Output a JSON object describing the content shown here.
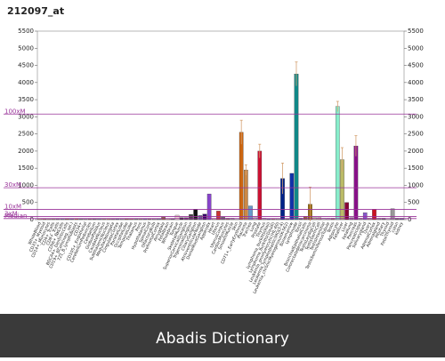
{
  "chart_data": {
    "type": "bar",
    "title": "212097_at",
    "categories": [
      "WholeBlood",
      "CD33+_Myeloid",
      "CD14+_Monocytes",
      "CD4+_Tcells",
      "CD8+_Tcells",
      "CD56+_NKCells",
      "BDCA4+_DentriticCells",
      "CD19+_BCells(neg._sel.)",
      "721_B_lymphoblasts",
      "CD34+",
      "CD105+_Endothelial",
      "CerebellumPeduncles",
      "Cerebellum",
      "GlobusPallidus",
      "CaudateNucleus",
      "SubthalamicNucleus",
      "MedullaOblongata",
      "CingulateCortex",
      "ParietalLobe",
      "OccipitalLobe",
      "TemporalLobe",
      "Thalamus",
      "Pons",
      "Hypothalamus",
      "SpinalCord",
      "OlfactoryBulb",
      "PrefrontalCortex",
      "Amygdala",
      "Fetalbrain",
      "Wholebrain",
      "Tongue",
      "SkeletalMuscle",
      "SuperiorCervicalGanglion",
      "TrigeminalGanglion",
      "CiliaryGanglion",
      "AtrioventricularNode",
      "DorsalRootGanglion",
      "Appendix",
      "Heart",
      "Uterus",
      "UterusCorpus",
      "CardiacMyocytes",
      "SmoothMuscle",
      "Skin",
      "CD71+_EarlyErythroid",
      "Placenta",
      "Trachea",
      "Lung",
      "Prostate",
      "Thymus",
      "Lymphoma_burkitts(Raji)",
      "Lymphoma_burkitts(Daudi)",
      "Leukemia_promyelocytic(HL-60)",
      "Leukemia_lymphoblastic(MOLT-4)",
      "Leukemia_chronicMyelogenous(K-562)",
      "Bonemarrow",
      "Lymphnode",
      "Tonsil",
      "BronchialEpithelialCells",
      "Colorectaladenocarcinoma",
      "TestisLeydigCell",
      "TestisGermCell",
      "TestisIntersitial",
      "TestisSeminiferousTubule",
      "Testis",
      "Adipocyte",
      "Fetalliver",
      "Liver",
      "Fetallung",
      "Pancreas",
      "PancreaticIslet",
      "Salivarygland",
      "Ovary",
      "AdrenalCortex",
      "Adrenalgland",
      "Pituitary",
      "Thyroid",
      "FetalThyroid",
      "colon",
      "kidney"
    ],
    "values": [
      30,
      20,
      20,
      20,
      20,
      20,
      20,
      20,
      20,
      20,
      20,
      20,
      20,
      20,
      20,
      20,
      20,
      20,
      20,
      20,
      20,
      20,
      20,
      20,
      20,
      20,
      20,
      70,
      30,
      20,
      130,
      60,
      60,
      150,
      300,
      120,
      160,
      750,
      30,
      250,
      70,
      40,
      40,
      30,
      2550,
      1450,
      400,
      60,
      2000,
      40,
      30,
      30,
      30,
      1200,
      30,
      1350,
      4250,
      40,
      100,
      450,
      60,
      60,
      40,
      40,
      40,
      3300,
      1750,
      500,
      60,
      2150,
      40,
      200,
      40,
      300,
      40,
      40,
      30,
      320,
      40,
      40
    ],
    "errors": [
      0,
      0,
      0,
      0,
      0,
      0,
      0,
      0,
      0,
      0,
      0,
      0,
      0,
      0,
      0,
      0,
      0,
      0,
      0,
      0,
      0,
      0,
      0,
      0,
      0,
      0,
      0,
      0,
      0,
      0,
      0,
      0,
      0,
      0,
      0,
      0,
      0,
      0,
      0,
      0,
      0,
      0,
      0,
      0,
      350,
      150,
      0,
      0,
      200,
      0,
      0,
      0,
      0,
      450,
      0,
      0,
      350,
      0,
      0,
      500,
      0,
      0,
      0,
      0,
      0,
      150,
      350,
      0,
      0,
      300,
      0,
      0,
      0,
      0,
      0,
      0,
      0,
      0,
      0,
      0
    ],
    "colors": [
      "#b9a07a",
      "#cc6666",
      "#cc9999",
      "#999966",
      "#996699",
      "#669999",
      "#996633",
      "#666699",
      "#cc6633",
      "#669966",
      "#999999",
      "#996666",
      "#666666",
      "#669999",
      "#999966",
      "#cc9966",
      "#996699",
      "#666699",
      "#999999",
      "#996633",
      "#cc6666",
      "#669966",
      "#999966",
      "#666699",
      "#996666",
      "#999999",
      "#669999",
      "#996633",
      "#ccaa99",
      "#666666",
      "#f0d8d8",
      "#222222",
      "#663366",
      "#444444",
      "#111111",
      "#666699",
      "#330066",
      "#8844cc",
      "#ccaaaa",
      "#cc3333",
      "#666666",
      "#996666",
      "#999999",
      "#cccccc",
      "#cc6611",
      "#cc8844",
      "#6699cc",
      "#cccccc",
      "#cc1133",
      "#999999",
      "#666699",
      "#996666",
      "#999999",
      "#002288",
      "#666666",
      "#1133aa",
      "#118888",
      "#666666",
      "#996633",
      "#996600",
      "#cccc99",
      "#cc9999",
      "#cccccc",
      "#cc99cc",
      "#996666",
      "#88eecc",
      "#bbbb66",
      "#880033",
      "#996699",
      "#881188",
      "#999999",
      "#8855cc",
      "#cc9999",
      "#cc1122",
      "#999999",
      "#666666",
      "#cccccc",
      "#999999",
      "#666666",
      "#666699"
    ],
    "ylim": [
      0,
      5500
    ],
    "yticks": [
      0,
      500,
      1000,
      1500,
      2000,
      2500,
      3000,
      3500,
      4000,
      4500,
      5000,
      5500
    ],
    "reference_lines": [
      {
        "label": "100xM",
        "value": 3080
      },
      {
        "label": "30xM",
        "value": 930
      },
      {
        "label": "10xM",
        "value": 300
      },
      {
        "label": "3xM",
        "value": 92
      },
      {
        "label": "Median",
        "value": 31
      }
    ],
    "reference_color": "#993399",
    "error_color": "#d4a070",
    "caption": "Abadis Dictionary"
  }
}
